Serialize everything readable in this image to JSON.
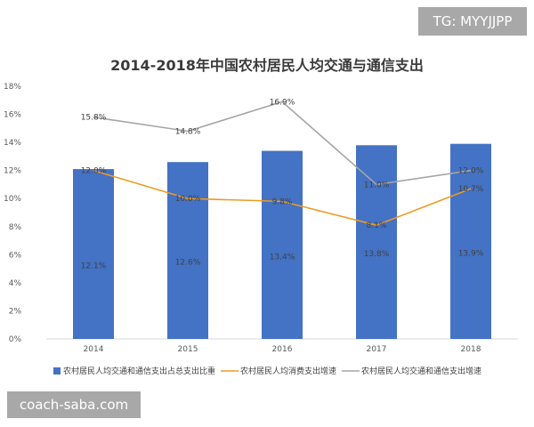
{
  "watermarks": {
    "top_right": "TG: MYYJJPP",
    "bottom_left": "coach-saba.com"
  },
  "chart_data": {
    "type": "bar",
    "title": "2014-2018年中国农村居民人均交通与通信支出",
    "categories": [
      "2014",
      "2015",
      "2016",
      "2017",
      "2018"
    ],
    "ylim": [
      0,
      18
    ],
    "yticks": [
      "0%",
      "2%",
      "4%",
      "6%",
      "8%",
      "10%",
      "12%",
      "14%",
      "16%",
      "18%"
    ],
    "grid": false,
    "legend_position": "bottom",
    "series": [
      {
        "name": "农村居民人均交通和通信支出占总支出比重",
        "kind": "bar",
        "color": "#4472c4",
        "values": [
          12.1,
          12.6,
          13.4,
          13.8,
          13.9
        ],
        "labels": [
          "12.1%",
          "12.6%",
          "13.4%",
          "13.8%",
          "13.9%"
        ]
      },
      {
        "name": "农村居民人均消费支出增速",
        "kind": "line",
        "color": "#ed9a24",
        "values": [
          12.0,
          10.0,
          9.8,
          8.1,
          10.7
        ],
        "labels": [
          "12.0%",
          "10.0%",
          "9.8%",
          "8.1%",
          "10.7%"
        ]
      },
      {
        "name": "农村居民人均交通和通信支出增速",
        "kind": "line",
        "color": "#a5a5a5",
        "values": [
          15.8,
          14.8,
          16.9,
          11.0,
          12.0
        ],
        "labels": [
          "15.8%",
          "14.8%",
          "16.9%",
          "11.0%",
          "12.0%"
        ]
      }
    ]
  }
}
